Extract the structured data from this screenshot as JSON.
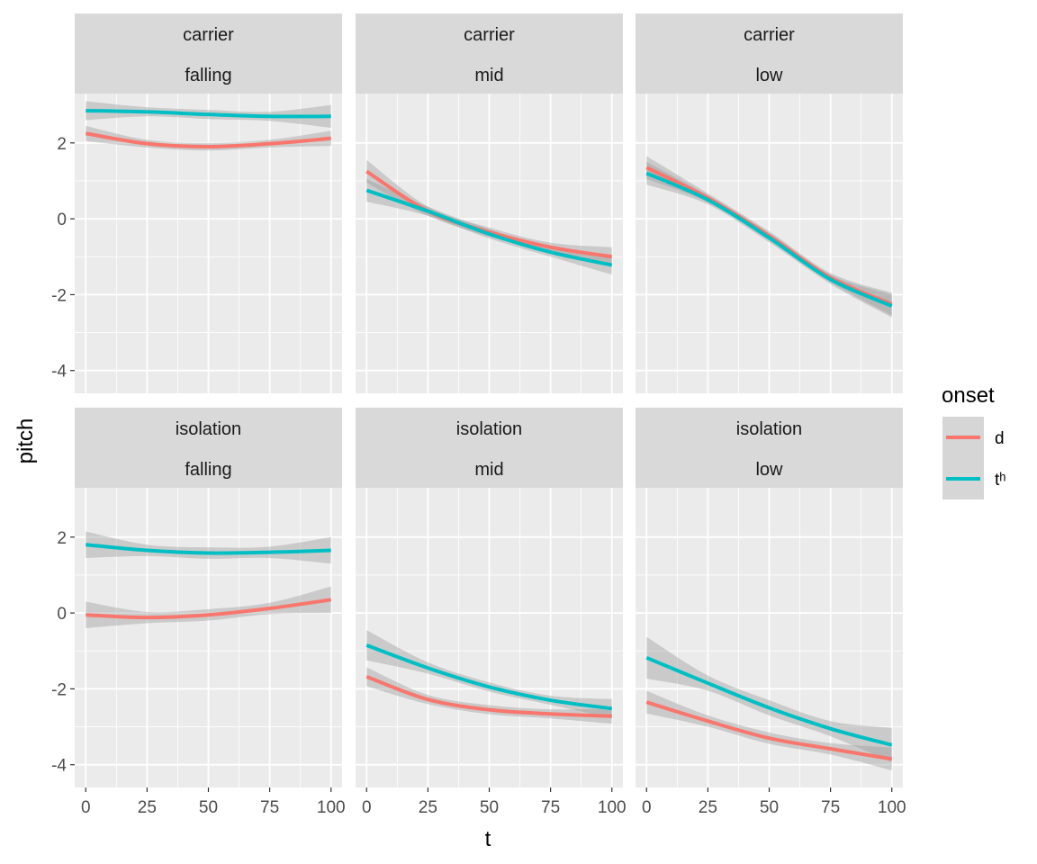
{
  "chart_data": {
    "type": "line",
    "xlabel": "t",
    "ylabel": "pitch",
    "xlim": [
      -4.5,
      104.5
    ],
    "ylim": [
      -4.6,
      3.3
    ],
    "x_ticks": [
      0,
      25,
      50,
      75,
      100
    ],
    "x_tick_labels": [
      "0",
      "25",
      "50",
      "75",
      "100"
    ],
    "y_ticks": [
      2,
      0,
      -2,
      -4
    ],
    "y_tick_labels": [
      "2",
      "0",
      "-2",
      "-4"
    ],
    "grid": true,
    "legend": {
      "title": "onset",
      "position": "right",
      "entries": [
        {
          "label": "d",
          "color": "#F8766D"
        },
        {
          "label": "tʰ",
          "color": "#00BFC4"
        }
      ]
    },
    "colors": {
      "panel_bg": "#EBEBEB",
      "strip_bg": "#D9D9D9",
      "grid": "#FFFFFF",
      "ribbon": "#999999"
    },
    "x": [
      0,
      25,
      50,
      75,
      100
    ],
    "panels": [
      {
        "strip": [
          "carrier",
          "falling"
        ],
        "series": [
          {
            "name": "d",
            "values": [
              2.25,
              1.98,
              1.9,
              1.98,
              2.12
            ],
            "se": [
              0.2,
              0.1,
              0.1,
              0.1,
              0.2
            ]
          },
          {
            "name": "tʰ",
            "values": [
              2.85,
              2.82,
              2.75,
              2.7,
              2.7
            ],
            "se": [
              0.25,
              0.12,
              0.12,
              0.12,
              0.3
            ]
          }
        ]
      },
      {
        "strip": [
          "carrier",
          "mid"
        ],
        "series": [
          {
            "name": "d",
            "values": [
              1.25,
              0.2,
              -0.35,
              -0.75,
              -1.0
            ],
            "se": [
              0.3,
              0.12,
              0.12,
              0.12,
              0.25
            ]
          },
          {
            "name": "tʰ",
            "values": [
              0.75,
              0.2,
              -0.4,
              -0.88,
              -1.22
            ],
            "se": [
              0.3,
              0.12,
              0.12,
              0.12,
              0.25
            ]
          }
        ]
      },
      {
        "strip": [
          "carrier",
          "low"
        ],
        "series": [
          {
            "name": "d",
            "values": [
              1.35,
              0.55,
              -0.45,
              -1.55,
              -2.25
            ],
            "se": [
              0.3,
              0.12,
              0.12,
              0.12,
              0.3
            ]
          },
          {
            "name": "tʰ",
            "values": [
              1.2,
              0.5,
              -0.5,
              -1.6,
              -2.3
            ],
            "se": [
              0.3,
              0.12,
              0.12,
              0.12,
              0.3
            ]
          }
        ]
      },
      {
        "strip": [
          "isolation",
          "falling"
        ],
        "series": [
          {
            "name": "d",
            "values": [
              -0.05,
              -0.12,
              -0.05,
              0.12,
              0.35
            ],
            "se": [
              0.35,
              0.15,
              0.15,
              0.15,
              0.35
            ]
          },
          {
            "name": "tʰ",
            "values": [
              1.8,
              1.65,
              1.58,
              1.6,
              1.65
            ],
            "se": [
              0.35,
              0.15,
              0.15,
              0.15,
              0.35
            ]
          }
        ]
      },
      {
        "strip": [
          "isolation",
          "mid"
        ],
        "series": [
          {
            "name": "d",
            "values": [
              -1.68,
              -2.28,
              -2.55,
              -2.66,
              -2.72
            ],
            "se": [
              0.25,
              0.12,
              0.12,
              0.12,
              0.2
            ]
          },
          {
            "name": "tʰ",
            "values": [
              -0.85,
              -1.45,
              -1.95,
              -2.3,
              -2.52
            ],
            "se": [
              0.4,
              0.15,
              0.12,
              0.12,
              0.25
            ]
          }
        ]
      },
      {
        "strip": [
          "isolation",
          "low"
        ],
        "series": [
          {
            "name": "d",
            "values": [
              -2.35,
              -2.85,
              -3.3,
              -3.58,
              -3.85
            ],
            "se": [
              0.3,
              0.15,
              0.15,
              0.15,
              0.3
            ]
          },
          {
            "name": "tʰ",
            "values": [
              -1.18,
              -1.85,
              -2.5,
              -3.05,
              -3.48
            ],
            "se": [
              0.55,
              0.2,
              0.2,
              0.2,
              0.45
            ]
          }
        ]
      }
    ]
  }
}
